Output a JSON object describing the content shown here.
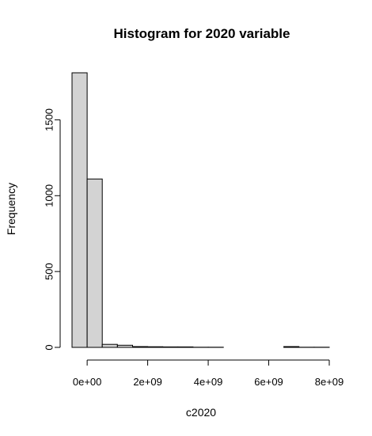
{
  "chart_data": {
    "type": "bar",
    "title": "Histogram for 2020 variable",
    "xlabel": "c2020",
    "ylabel": "Frequency",
    "x_ticks": [
      0,
      2000000000,
      4000000000,
      6000000000,
      8000000000
    ],
    "x_tick_labels": [
      "0e+00",
      "2e+09",
      "4e+09",
      "6e+09",
      "8e+09"
    ],
    "y_ticks": [
      0,
      500,
      1000,
      1500
    ],
    "y_tick_labels": [
      "0",
      "500",
      "1000",
      "1500"
    ],
    "bin_edges": [
      -500000000,
      0,
      500000000,
      1000000000,
      1500000000,
      2000000000,
      2500000000,
      3000000000,
      3500000000,
      4000000000,
      4500000000,
      5000000000,
      5500000000,
      6000000000,
      6500000000,
      7000000000,
      7500000000,
      8000000000
    ],
    "values": [
      1810,
      1110,
      20,
      14,
      5,
      4,
      3,
      3,
      1,
      1,
      0,
      0,
      0,
      0,
      5,
      1,
      1
    ],
    "xlim": [
      -500000000,
      8000000000
    ],
    "ylim": [
      0,
      1810
    ],
    "grid": false,
    "bar_color": "#d3d3d3"
  }
}
